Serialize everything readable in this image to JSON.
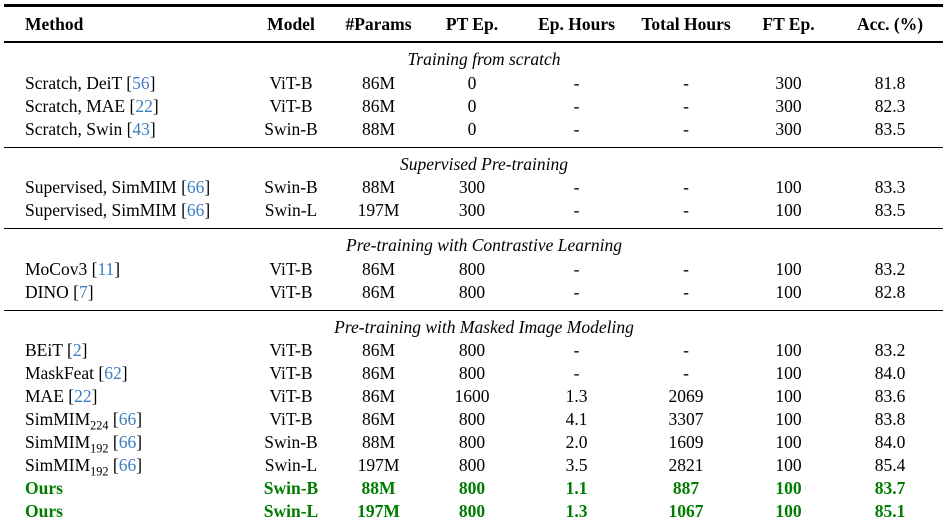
{
  "colors": {
    "citation": "#3C7DC4",
    "ours_highlight": "#007D00",
    "text": "#000000",
    "background": "#FFFFFF"
  },
  "table": {
    "columns": [
      {
        "label": "Method"
      },
      {
        "label": "Model"
      },
      {
        "label": "#Params"
      },
      {
        "label": "PT Ep."
      },
      {
        "label": "Ep. Hours"
      },
      {
        "label": "Total Hours"
      },
      {
        "label": "FT Ep."
      },
      {
        "label": "Acc. (%)"
      }
    ],
    "sections": [
      {
        "title": "Training from scratch",
        "rows": [
          {
            "method": {
              "text": "Scratch, DeiT",
              "cite": "56"
            },
            "values": [
              "ViT-B",
              "86M",
              "0",
              "-",
              "-",
              "300",
              "81.8"
            ]
          },
          {
            "method": {
              "text": "Scratch, MAE",
              "cite": "22"
            },
            "values": [
              "ViT-B",
              "86M",
              "0",
              "-",
              "-",
              "300",
              "82.3"
            ]
          },
          {
            "method": {
              "text": "Scratch, Swin",
              "cite": "43"
            },
            "values": [
              "Swin-B",
              "88M",
              "0",
              "-",
              "-",
              "300",
              "83.5"
            ]
          }
        ]
      },
      {
        "title": "Supervised Pre-training",
        "rows": [
          {
            "method": {
              "text": "Supervised, SimMIM",
              "cite": "66"
            },
            "values": [
              "Swin-B",
              "88M",
              "300",
              "-",
              "-",
              "100",
              "83.3"
            ]
          },
          {
            "method": {
              "text": "Supervised, SimMIM",
              "cite": "66"
            },
            "values": [
              "Swin-L",
              "197M",
              "300",
              "-",
              "-",
              "100",
              "83.5"
            ]
          }
        ]
      },
      {
        "title": "Pre-training with Contrastive Learning",
        "rows": [
          {
            "method": {
              "text": "MoCov3",
              "cite": "11"
            },
            "values": [
              "ViT-B",
              "86M",
              "800",
              "-",
              "-",
              "100",
              "83.2"
            ]
          },
          {
            "method": {
              "text": "DINO",
              "cite": "7"
            },
            "values": [
              "ViT-B",
              "86M",
              "800",
              "-",
              "-",
              "100",
              "82.8"
            ]
          }
        ]
      },
      {
        "title": "Pre-training with Masked Image Modeling",
        "rows": [
          {
            "method": {
              "text": "BEiT",
              "cite": "2"
            },
            "values": [
              "ViT-B",
              "86M",
              "800",
              "-",
              "-",
              "100",
              "83.2"
            ]
          },
          {
            "method": {
              "text": "MaskFeat",
              "cite": "62"
            },
            "values": [
              "ViT-B",
              "86M",
              "800",
              "-",
              "-",
              "100",
              "84.0"
            ]
          },
          {
            "method": {
              "text": "MAE",
              "cite": "22"
            },
            "values": [
              "ViT-B",
              "86M",
              "1600",
              "1.3",
              "2069",
              "100",
              "83.6"
            ]
          },
          {
            "method": {
              "text": "SimMIM",
              "sub": "224",
              "cite": "66"
            },
            "values": [
              "ViT-B",
              "86M",
              "800",
              "4.1",
              "3307",
              "100",
              "83.8"
            ]
          },
          {
            "method": {
              "text": "SimMIM",
              "sub": "192",
              "cite": "66"
            },
            "values": [
              "Swin-B",
              "88M",
              "800",
              "2.0",
              "1609",
              "100",
              "84.0"
            ]
          },
          {
            "method": {
              "text": "SimMIM",
              "sub": "192",
              "cite": "66"
            },
            "values": [
              "Swin-L",
              "197M",
              "800",
              "3.5",
              "2821",
              "100",
              "85.4"
            ]
          },
          {
            "method": {
              "text": "Ours"
            },
            "highlight": true,
            "values": [
              "Swin-B",
              "88M",
              "800",
              "1.1",
              "887",
              "100",
              "83.7"
            ]
          },
          {
            "method": {
              "text": "Ours"
            },
            "highlight": true,
            "values": [
              "Swin-L",
              "197M",
              "800",
              "1.3",
              "1067",
              "100",
              "85.1"
            ]
          }
        ]
      }
    ]
  }
}
